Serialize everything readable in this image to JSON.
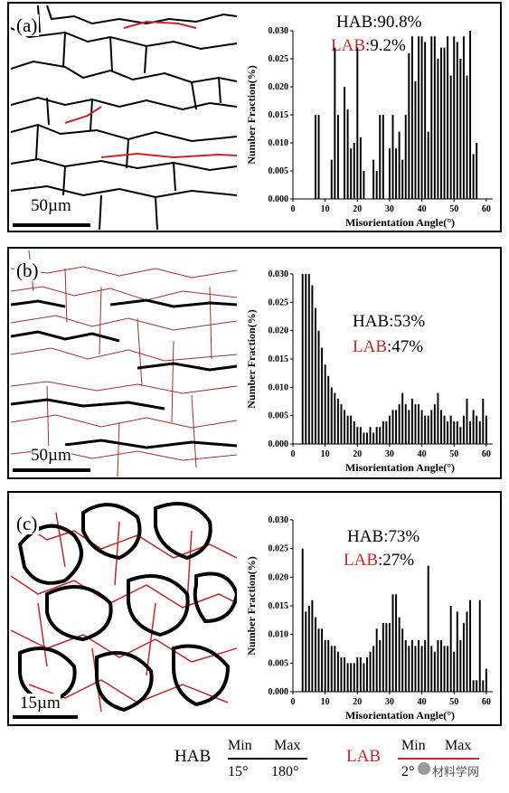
{
  "panels": [
    {
      "label": "(a)",
      "scale": "50µm",
      "hab_label": "HAB",
      "hab_value": ":90.8%",
      "lab_label": "LAB",
      "lab_value": ":9.2%"
    },
    {
      "label": "(b)",
      "scale": "50µm",
      "hab_label": "HAB",
      "hab_value": ":53%",
      "lab_label": "LAB",
      "lab_value": ":47%"
    },
    {
      "label": "(c)",
      "scale": "15µm",
      "hab_label": "HAB",
      "hab_value": ":73%",
      "lab_label": "LAB",
      "lab_value": ":27%"
    }
  ],
  "colors": {
    "hab": "#000000",
    "lab": "#c0282d"
  },
  "legend": {
    "hab": {
      "title": "HAB",
      "min_label": "Min",
      "max_label": "Max",
      "min_value": "15°",
      "max_value": "180°"
    },
    "lab": {
      "title": "LAB",
      "min_label": "Min",
      "max_label": "Max",
      "min_value": "2°"
    }
  },
  "watermark": "材料学网",
  "chart_data": [
    {
      "type": "bar",
      "xlabel": "Misorientation Angle(°)",
      "ylabel": "Number Fraction(%)",
      "xlim": [
        0,
        62
      ],
      "ylim": [
        0,
        0.03
      ],
      "xticks": [
        0,
        10,
        20,
        30,
        40,
        50,
        60
      ],
      "yticks": [
        "0.000",
        "0.005",
        "0.010",
        "0.015",
        "0.020",
        "0.025",
        "0.030"
      ],
      "x": [
        7,
        8,
        12,
        13,
        14,
        16,
        17,
        18,
        19,
        20,
        21,
        22,
        25,
        26,
        27,
        28,
        30,
        31,
        32,
        33,
        34,
        35,
        36,
        37,
        38,
        39,
        40,
        41,
        42,
        43,
        44,
        45,
        46,
        47,
        48,
        49,
        50,
        51,
        52,
        53,
        54,
        55,
        56,
        57
      ],
      "values": [
        0.015,
        0.015,
        0.007,
        0.027,
        0.015,
        0.02,
        0.016,
        0.009,
        0.01,
        0.027,
        0.011,
        0.005,
        0.007,
        0.005,
        0.015,
        0.015,
        0.009,
        0.015,
        0.009,
        0.012,
        0.007,
        0.015,
        0.026,
        0.029,
        0.021,
        0.029,
        0.029,
        0.028,
        0.012,
        0.029,
        0.029,
        0.025,
        0.027,
        0.027,
        0.029,
        0.022,
        0.029,
        0.028,
        0.025,
        0.029,
        0.022,
        0.03,
        0.008,
        0.01
      ]
    },
    {
      "type": "bar",
      "xlabel": "Misorientation Angle(°)",
      "ylabel": "Number Fraction(%)",
      "xlim": [
        0,
        62
      ],
      "ylim": [
        0,
        0.03
      ],
      "xticks": [
        0,
        10,
        20,
        30,
        40,
        50,
        60
      ],
      "yticks": [
        "0.000",
        "0.005",
        "0.010",
        "0.015",
        "0.020",
        "0.025",
        "0.030"
      ],
      "x": [
        3,
        4,
        5,
        6,
        7,
        8,
        9,
        10,
        11,
        12,
        13,
        14,
        15,
        16,
        17,
        18,
        19,
        20,
        21,
        22,
        23,
        24,
        25,
        26,
        27,
        28,
        29,
        30,
        31,
        32,
        33,
        34,
        35,
        36,
        37,
        38,
        39,
        40,
        41,
        42,
        43,
        44,
        45,
        46,
        47,
        48,
        49,
        50,
        51,
        52,
        53,
        54,
        55,
        56,
        57,
        58,
        59,
        60
      ],
      "values": [
        0.03,
        0.03,
        0.03,
        0.028,
        0.024,
        0.02,
        0.017,
        0.014,
        0.012,
        0.01,
        0.009,
        0.008,
        0.007,
        0.006,
        0.005,
        0.005,
        0.004,
        0.003,
        0.003,
        0.002,
        0.002,
        0.003,
        0.002,
        0.003,
        0.003,
        0.004,
        0.004,
        0.005,
        0.006,
        0.006,
        0.007,
        0.009,
        0.007,
        0.006,
        0.008,
        0.007,
        0.007,
        0.006,
        0.005,
        0.005,
        0.006,
        0.007,
        0.009,
        0.006,
        0.005,
        0.004,
        0.005,
        0.004,
        0.004,
        0.003,
        0.005,
        0.008,
        0.004,
        0.006,
        0.005,
        0.004,
        0.008,
        0.005
      ]
    },
    {
      "type": "bar",
      "xlabel": "Misorientation Angle(°)",
      "ylabel": "Number Fraction(%)",
      "xlim": [
        0,
        62
      ],
      "ylim": [
        0,
        0.03
      ],
      "xticks": [
        0,
        10,
        20,
        30,
        40,
        50,
        60
      ],
      "yticks": [
        "0.000",
        "0.005",
        "0.010",
        "0.015",
        "0.020",
        "0.025",
        "0.030"
      ],
      "x": [
        3,
        4,
        5,
        6,
        7,
        8,
        9,
        10,
        11,
        12,
        13,
        14,
        15,
        16,
        17,
        18,
        19,
        20,
        21,
        22,
        23,
        24,
        25,
        26,
        27,
        28,
        29,
        30,
        31,
        32,
        33,
        34,
        35,
        36,
        37,
        38,
        39,
        40,
        41,
        42,
        43,
        44,
        45,
        46,
        47,
        48,
        49,
        50,
        51,
        52,
        53,
        54,
        55,
        56,
        57,
        58,
        59,
        60
      ],
      "values": [
        0.025,
        0.014,
        0.015,
        0.016,
        0.013,
        0.011,
        0.011,
        0.009,
        0.009,
        0.008,
        0.008,
        0.007,
        0.006,
        0.006,
        0.005,
        0.005,
        0.005,
        0.006,
        0.006,
        0.005,
        0.006,
        0.007,
        0.008,
        0.011,
        0.009,
        0.012,
        0.012,
        0.012,
        0.017,
        0.017,
        0.013,
        0.011,
        0.009,
        0.008,
        0.009,
        0.008,
        0.009,
        0.008,
        0.009,
        0.022,
        0.008,
        0.007,
        0.009,
        0.009,
        0.008,
        0.008,
        0.015,
        0.007,
        0.014,
        0.009,
        0.012,
        0.014,
        0.016,
        0.002,
        0.002,
        0.016,
        0.002,
        0.004
      ]
    }
  ]
}
